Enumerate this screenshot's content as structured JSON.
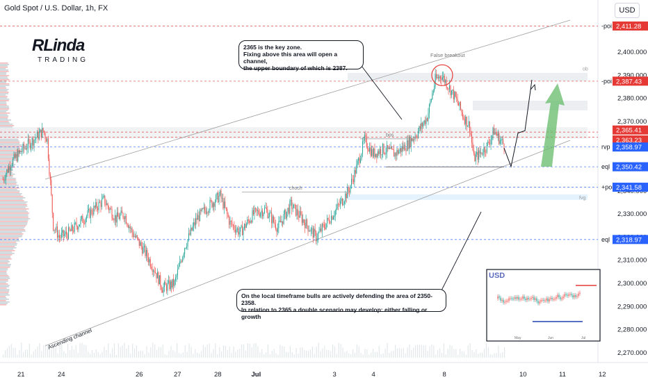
{
  "header": {
    "title": "Gold Spot / U.S. Dollar, 1h, FX",
    "currency_button": "USD"
  },
  "logo": {
    "main": "RLinda",
    "sub": "TRADING"
  },
  "annotations": {
    "callout_top": [
      "2365 is the key zone.",
      "Fixing above this area will open a channel,",
      "the upper boundary of which is 2387."
    ],
    "callout_bottom": [
      "On the local timeframe bulls are actively defending the area of 2350-2358.",
      "In relation to 2365 a double scenario may develop: either falling or growth"
    ],
    "false_breakout": "False breakout",
    "ascending_channel": "Ascending channel",
    "zone_ob": "ob",
    "zone_fvg": "fvg",
    "bos": "bos",
    "choch": "choch"
  },
  "inset": {
    "title": "USD",
    "x_labels": [
      "May",
      "Jun",
      "Jul"
    ]
  },
  "chart_data": {
    "type": "candlestick",
    "symbol": "XAUUSD",
    "timeframe": "1h",
    "ylim": [
      2265,
      2415
    ],
    "y_ticks": [
      2270,
      2280,
      2290,
      2300,
      2310,
      2320,
      2330,
      2340,
      2350,
      2360,
      2370,
      2380,
      2390,
      2400
    ],
    "x_labels": [
      "21",
      "24",
      "26",
      "27",
      "28",
      "Jul",
      "3",
      "4",
      "8",
      "10",
      "11",
      "12"
    ],
    "levels": [
      {
        "label": "-poi",
        "value": 2411.28,
        "color": "#e53935"
      },
      {
        "label": "-poi",
        "value": 2387.43,
        "color": "#e53935"
      },
      {
        "label": "",
        "value": 2365.41,
        "color": "#e53935"
      },
      {
        "label": "",
        "value": 2363.23,
        "color": "#e53935"
      },
      {
        "label": "rvp",
        "value": 2358.97,
        "color": "#2962ff"
      },
      {
        "label": "eql",
        "value": 2350.42,
        "color": "#2962ff"
      },
      {
        "label": "+poi",
        "value": 2341.58,
        "color": "#2962ff"
      },
      {
        "label": "eql",
        "value": 2318.97,
        "color": "#2962ff"
      }
    ],
    "anchors": [
      [
        0,
        2345
      ],
      [
        8,
        2352
      ],
      [
        20,
        2358
      ],
      [
        30,
        2362
      ],
      [
        40,
        2366
      ],
      [
        44,
        2362
      ],
      [
        50,
        2325
      ],
      [
        56,
        2320
      ],
      [
        66,
        2322
      ],
      [
        80,
        2328
      ],
      [
        90,
        2332
      ],
      [
        100,
        2336
      ],
      [
        112,
        2328
      ],
      [
        120,
        2330
      ],
      [
        128,
        2322
      ],
      [
        140,
        2314
      ],
      [
        150,
        2306
      ],
      [
        158,
        2298
      ],
      [
        170,
        2300
      ],
      [
        180,
        2316
      ],
      [
        192,
        2328
      ],
      [
        205,
        2334
      ],
      [
        215,
        2338
      ],
      [
        225,
        2326
      ],
      [
        235,
        2322
      ],
      [
        248,
        2330
      ],
      [
        260,
        2332
      ],
      [
        272,
        2324
      ],
      [
        285,
        2334
      ],
      [
        296,
        2328
      ],
      [
        310,
        2320
      ],
      [
        320,
        2326
      ],
      [
        330,
        2332
      ],
      [
        342,
        2340
      ],
      [
        350,
        2350
      ],
      [
        358,
        2362
      ],
      [
        366,
        2356
      ],
      [
        376,
        2358
      ],
      [
        388,
        2356
      ],
      [
        400,
        2360
      ],
      [
        410,
        2365
      ],
      [
        420,
        2372
      ],
      [
        428,
        2388
      ],
      [
        434,
        2390
      ],
      [
        440,
        2386
      ],
      [
        448,
        2380
      ],
      [
        456,
        2372
      ],
      [
        462,
        2368
      ],
      [
        466,
        2354
      ],
      [
        472,
        2356
      ],
      [
        480,
        2360
      ],
      [
        486,
        2366
      ],
      [
        492,
        2362
      ],
      [
        496,
        2360
      ]
    ],
    "projection_path": [
      [
        2358.5,
        0
      ],
      [
        2350.5,
        1
      ],
      [
        2365,
        2
      ],
      [
        2366,
        3
      ],
      [
        2388,
        4
      ]
    ]
  }
}
